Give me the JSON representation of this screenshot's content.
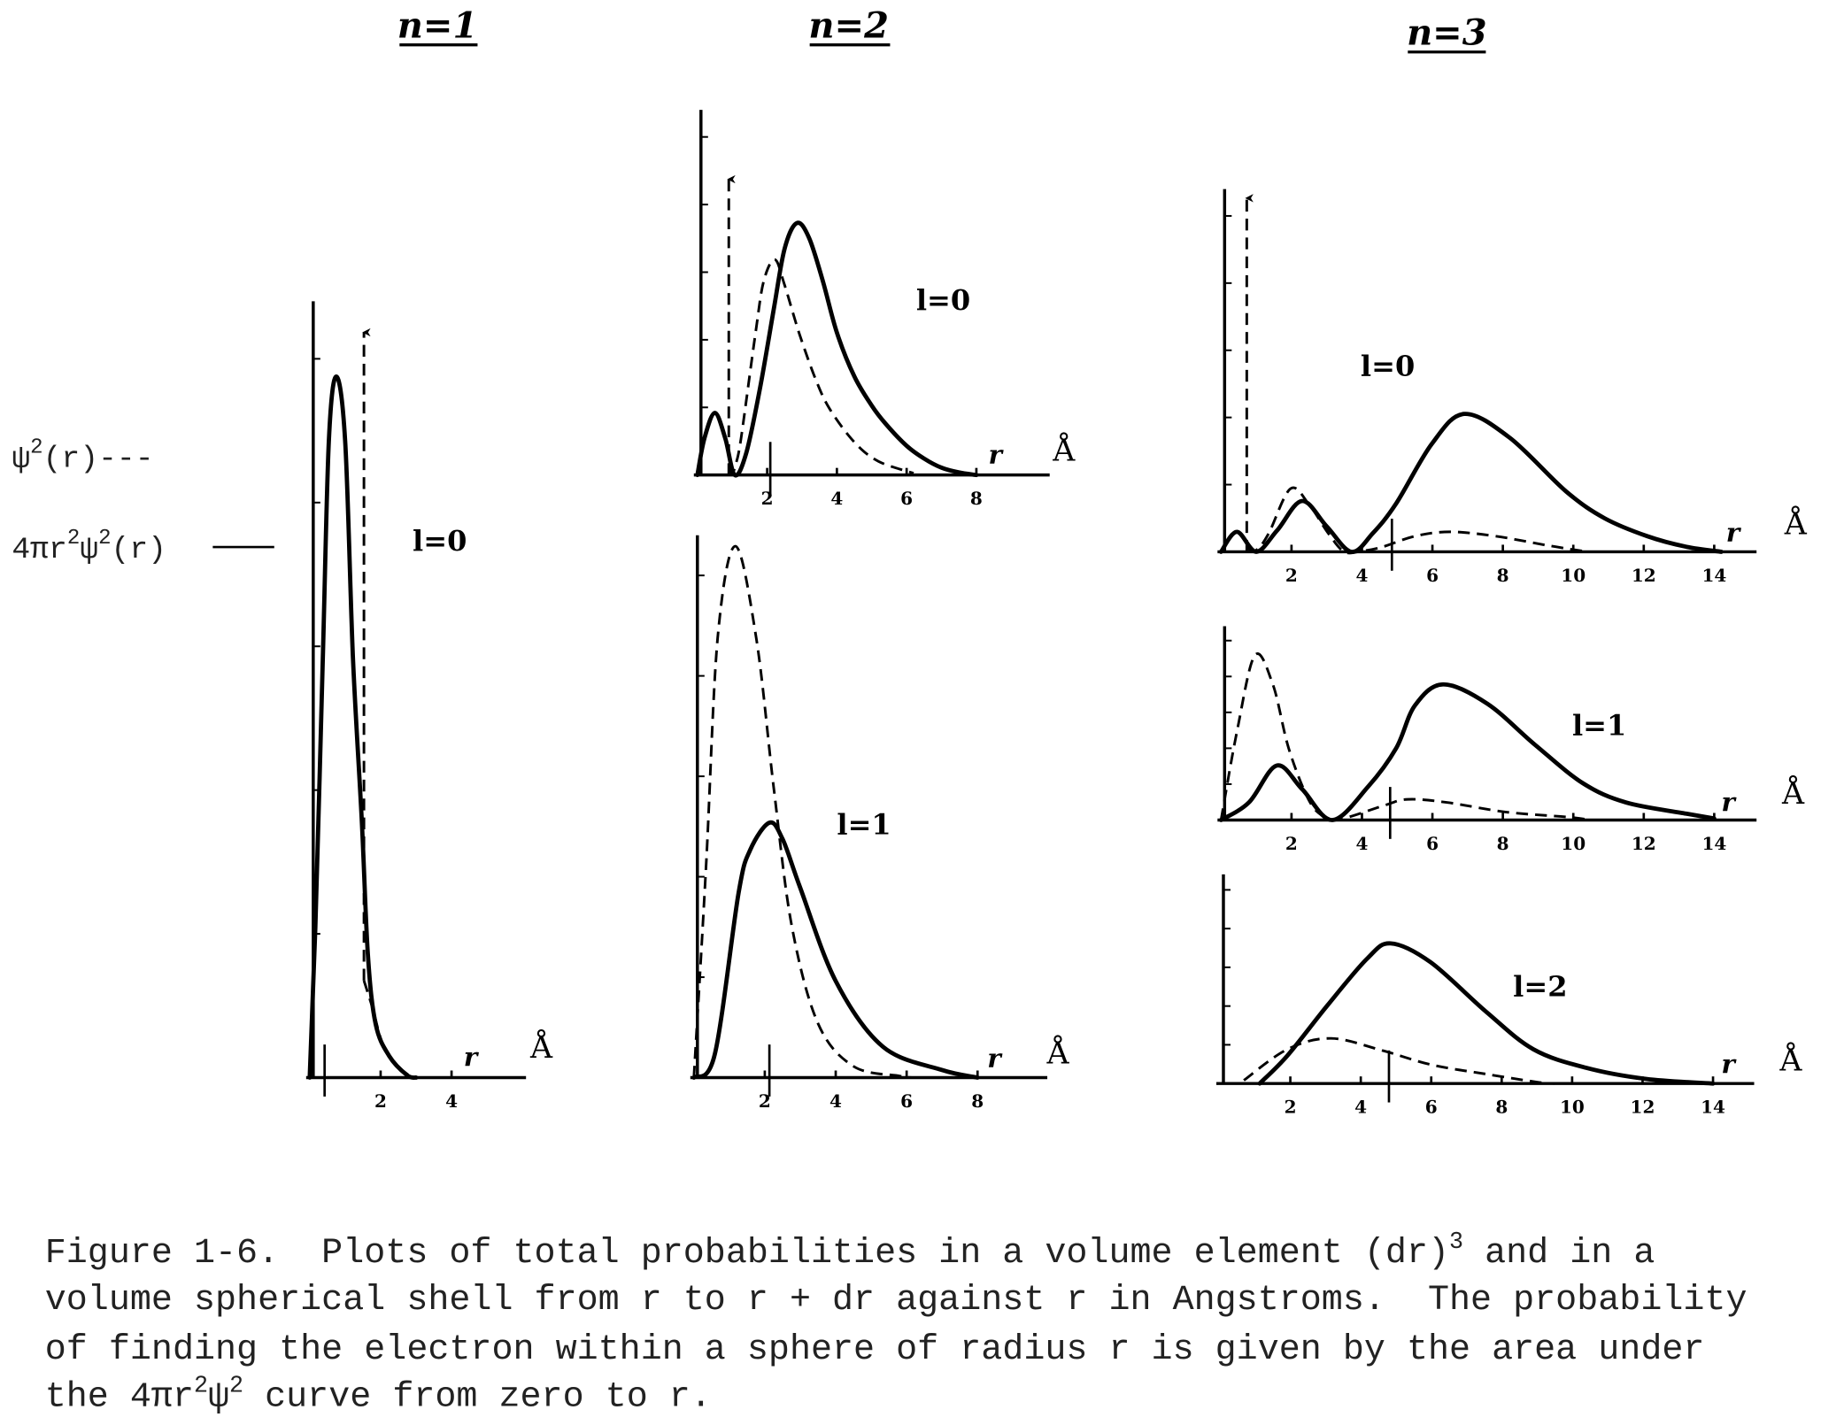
{
  "columns": [
    {
      "title": "n=1"
    },
    {
      "title": "n=2"
    },
    {
      "title": "n=3"
    }
  ],
  "legend": {
    "dashed": {
      "parts": [
        "ψ",
        "2",
        "(r)---"
      ],
      "series": "ψ²(r)"
    },
    "solid": {
      "parts": [
        "4πr",
        "2",
        "ψ",
        "2",
        "(r)"
      ],
      "series": "4πr²ψ²(r)"
    }
  },
  "chart_data": [
    {
      "type": "line",
      "column": "n=1",
      "label": "l=0",
      "xlabel": "r",
      "unit": "Å",
      "xticks": [
        2,
        4
      ],
      "xlim": [
        0,
        6
      ],
      "ylim": [
        0,
        10
      ],
      "grid": false,
      "marker_r": 0.42,
      "series": [
        {
          "name": "4πr²ψ²(r)",
          "style": "solid",
          "points": [
            [
              0,
              0
            ],
            [
              0.16,
              1.94
            ],
            [
              0.37,
              5.4
            ],
            [
              0.54,
              8.2
            ],
            [
              0.75,
              9.03
            ],
            [
              1.0,
              8.2
            ],
            [
              1.22,
              5.4
            ],
            [
              1.47,
              3.3
            ],
            [
              1.64,
              1.59
            ],
            [
              1.86,
              0.69
            ],
            [
              2.24,
              0.28
            ],
            [
              2.75,
              0.03
            ],
            [
              3.0,
              0
            ]
          ]
        },
        {
          "name": "ψ²(r)",
          "style": "dashed",
          "arrow": {
            "r": 1.53,
            "from": 1.25,
            "to": 9.6
          },
          "points": [
            [
              1.53,
              1.25
            ],
            [
              1.77,
              0.9
            ],
            [
              2.07,
              0.42
            ],
            [
              2.5,
              0.14
            ],
            [
              2.9,
              0
            ]
          ]
        }
      ]
    },
    {
      "type": "line",
      "column": "n=2",
      "label": "l=0",
      "xlabel": "r",
      "unit": "Å",
      "xticks": [
        2,
        4,
        6,
        8
      ],
      "xlim": [
        0,
        10
      ],
      "ylim": [
        0,
        10
      ],
      "grid": false,
      "marker_r": 2.09,
      "series": [
        {
          "name": "4πr²ψ²(r)",
          "style": "solid",
          "points": [
            [
              0,
              0
            ],
            [
              0.2,
              1.0
            ],
            [
              0.5,
              1.7
            ],
            [
              0.8,
              1.0
            ],
            [
              1.07,
              0
            ],
            [
              1.4,
              0.6
            ],
            [
              1.8,
              2.4
            ],
            [
              2.2,
              4.6
            ],
            [
              2.5,
              6.2
            ],
            [
              2.85,
              6.9
            ],
            [
              3.2,
              6.5
            ],
            [
              3.6,
              5.3
            ],
            [
              4.0,
              3.9
            ],
            [
              4.5,
              2.7
            ],
            [
              5.0,
              1.9
            ],
            [
              5.4,
              1.4
            ],
            [
              6.0,
              0.8
            ],
            [
              6.5,
              0.45
            ],
            [
              7.0,
              0.2
            ],
            [
              7.5,
              0.07
            ],
            [
              8.0,
              0
            ]
          ]
        },
        {
          "name": "ψ²(r)",
          "style": "dashed",
          "arrow": {
            "r": 0.9,
            "from": 0,
            "to": 8.1
          },
          "points": [
            [
              0.9,
              0.2
            ],
            [
              1.0,
              0.05
            ],
            [
              1.1,
              0.3
            ],
            [
              1.25,
              1.0
            ],
            [
              1.66,
              3.85
            ],
            [
              1.9,
              5.3
            ],
            [
              2.22,
              5.9
            ],
            [
              2.5,
              5.2
            ],
            [
              2.93,
              3.85
            ],
            [
              3.4,
              2.6
            ],
            [
              3.8,
              1.8
            ],
            [
              4.5,
              0.9
            ],
            [
              5.2,
              0.37
            ],
            [
              6.2,
              0.05
            ]
          ]
        }
      ]
    },
    {
      "type": "line",
      "column": "n=2",
      "label": "l=1",
      "xlabel": "r",
      "unit": "Å",
      "xticks": [
        2,
        4,
        6,
        8
      ],
      "xlim": [
        0,
        10
      ],
      "ylim": [
        0,
        10
      ],
      "grid": false,
      "marker_r": 2.13,
      "series": [
        {
          "name": "4πr²ψ²(r)",
          "style": "solid",
          "points": [
            [
              0,
              0
            ],
            [
              0.59,
              0.43
            ],
            [
              1.26,
              3.4
            ],
            [
              1.59,
              4.2
            ],
            [
              2.13,
              4.7
            ],
            [
              2.5,
              4.4
            ],
            [
              3.0,
              3.5
            ],
            [
              4.0,
              1.78
            ],
            [
              5.33,
              0.57
            ],
            [
              7.0,
              0.14
            ],
            [
              8.0,
              0
            ]
          ]
        },
        {
          "name": "ψ²(r)",
          "style": "dashed",
          "points": [
            [
              0,
              0
            ],
            [
              0.34,
              3.85
            ],
            [
              0.67,
              8.1
            ],
            [
              1.17,
              9.8
            ],
            [
              1.76,
              8.1
            ],
            [
              2.26,
              5.3
            ],
            [
              2.76,
              2.8
            ],
            [
              3.5,
              1.0
            ],
            [
              4.5,
              0.21
            ],
            [
              5.8,
              0.03
            ],
            [
              6.2,
              0
            ]
          ]
        }
      ]
    },
    {
      "type": "line",
      "column": "n=3",
      "label": "l=0",
      "xlabel": "r",
      "unit": "Å",
      "xticks": [
        2,
        4,
        6,
        8,
        10,
        12,
        14
      ],
      "xlim": [
        0,
        15
      ],
      "ylim": [
        0,
        10
      ],
      "grid": false,
      "marker_r": 4.85,
      "series": [
        {
          "name": "4πr²ψ²(r)",
          "style": "solid",
          "points": [
            [
              0,
              0
            ],
            [
              0.45,
              0.55
            ],
            [
              1.0,
              0
            ],
            [
              1.6,
              0.6
            ],
            [
              2.3,
              1.4
            ],
            [
              3.0,
              0.7
            ],
            [
              3.7,
              0
            ],
            [
              4.3,
              0.5
            ],
            [
              4.97,
              1.33
            ],
            [
              5.98,
              2.97
            ],
            [
              6.9,
              3.8
            ],
            [
              8.2,
              3.14
            ],
            [
              9.8,
              1.66
            ],
            [
              10.9,
              0.92
            ],
            [
              12.1,
              0.43
            ],
            [
              13.2,
              0.14
            ],
            [
              14.2,
              0
            ]
          ]
        },
        {
          "name": "ψ²(r)",
          "style": "dashed",
          "arrow": {
            "r": 0.73,
            "from": 0,
            "to": 9.75
          },
          "points": [
            [
              0.73,
              0.1
            ],
            [
              1.0,
              0.05
            ],
            [
              1.35,
              0.5
            ],
            [
              1.97,
              1.74
            ],
            [
              2.5,
              1.3
            ],
            [
              3.05,
              0.5
            ],
            [
              3.5,
              0
            ],
            [
              4.0,
              0.02
            ],
            [
              4.6,
              0.14
            ],
            [
              5.5,
              0.43
            ],
            [
              6.5,
              0.55
            ],
            [
              7.8,
              0.43
            ],
            [
              9.25,
              0.18
            ],
            [
              10.4,
              0
            ]
          ]
        }
      ]
    },
    {
      "type": "line",
      "column": "n=3",
      "label": "l=1",
      "xlabel": "r",
      "unit": "Å",
      "xticks": [
        2,
        4,
        6,
        8,
        10,
        12,
        14
      ],
      "xlim": [
        0,
        15
      ],
      "ylim": [
        0,
        10
      ],
      "grid": false,
      "marker_r": 4.8,
      "series": [
        {
          "name": "4πr²ψ²(r)",
          "style": "solid",
          "points": [
            [
              0,
              0
            ],
            [
              0.79,
              0.9
            ],
            [
              1.58,
              2.81
            ],
            [
              2.3,
              1.6
            ],
            [
              3.16,
              0
            ],
            [
              4.18,
              1.74
            ],
            [
              4.97,
              3.7
            ],
            [
              5.5,
              5.9
            ],
            [
              6.3,
              7.0
            ],
            [
              7.56,
              6.0
            ],
            [
              8.9,
              3.9
            ],
            [
              10.27,
              1.9
            ],
            [
              11.5,
              0.9
            ],
            [
              13.2,
              0.33
            ],
            [
              14.0,
              0.08
            ]
          ]
        },
        {
          "name": "ψ²(r)",
          "style": "dashed",
          "points": [
            [
              0,
              0
            ],
            [
              0.45,
              4.55
            ],
            [
              0.96,
              8.5
            ],
            [
              1.47,
              7.0
            ],
            [
              1.92,
              3.7
            ],
            [
              2.48,
              1.07
            ],
            [
              2.93,
              0.16
            ],
            [
              3.4,
              0.05
            ],
            [
              4.63,
              0.75
            ],
            [
              5.3,
              1.07
            ],
            [
              6.43,
              0.9
            ],
            [
              8.1,
              0.41
            ],
            [
              9.8,
              0.16
            ],
            [
              10.5,
              0
            ]
          ]
        }
      ]
    },
    {
      "type": "line",
      "column": "n=3",
      "label": "l=2",
      "xlabel": "r",
      "unit": "Å",
      "xticks": [
        2,
        4,
        6,
        8,
        10,
        12,
        14
      ],
      "xlim": [
        0,
        15
      ],
      "ylim": [
        0,
        10
      ],
      "grid": false,
      "marker_r": 4.8,
      "series": [
        {
          "name": "4πr²ψ²(r)",
          "style": "solid",
          "points": [
            [
              1.13,
              0
            ],
            [
              1.92,
              1.34
            ],
            [
              3.05,
              3.73
            ],
            [
              4.18,
              5.97
            ],
            [
              4.85,
              6.7
            ],
            [
              5.98,
              5.8
            ],
            [
              7.56,
              3.43
            ],
            [
              8.9,
              1.64
            ],
            [
              10.4,
              0.75
            ],
            [
              12.1,
              0.22
            ],
            [
              14.0,
              0
            ]
          ]
        },
        {
          "name": "ψ²(r)",
          "style": "dashed",
          "points": [
            [
              0.68,
              0.15
            ],
            [
              1.92,
              1.64
            ],
            [
              3.16,
              2.16
            ],
            [
              4.63,
              1.57
            ],
            [
              6.0,
              0.9
            ],
            [
              7.56,
              0.45
            ],
            [
              9.0,
              0.07
            ],
            [
              9.5,
              0
            ]
          ]
        }
      ]
    }
  ],
  "caption": {
    "lines": [
      {
        "parts": [
          "Figure 1-6.  Plots of total probabilities in a volume element (dr)",
          "3",
          " and in a"
        ]
      },
      {
        "parts": [
          "volume spherical shell from r to r + dr against r in Angstroms.  The probability"
        ]
      },
      {
        "parts": [
          "of finding the electron within a sphere of radius r is given by the area under"
        ]
      },
      {
        "parts": [
          "the 4πr",
          "2",
          "ψ",
          "2",
          " curve from zero to r."
        ]
      }
    ]
  }
}
